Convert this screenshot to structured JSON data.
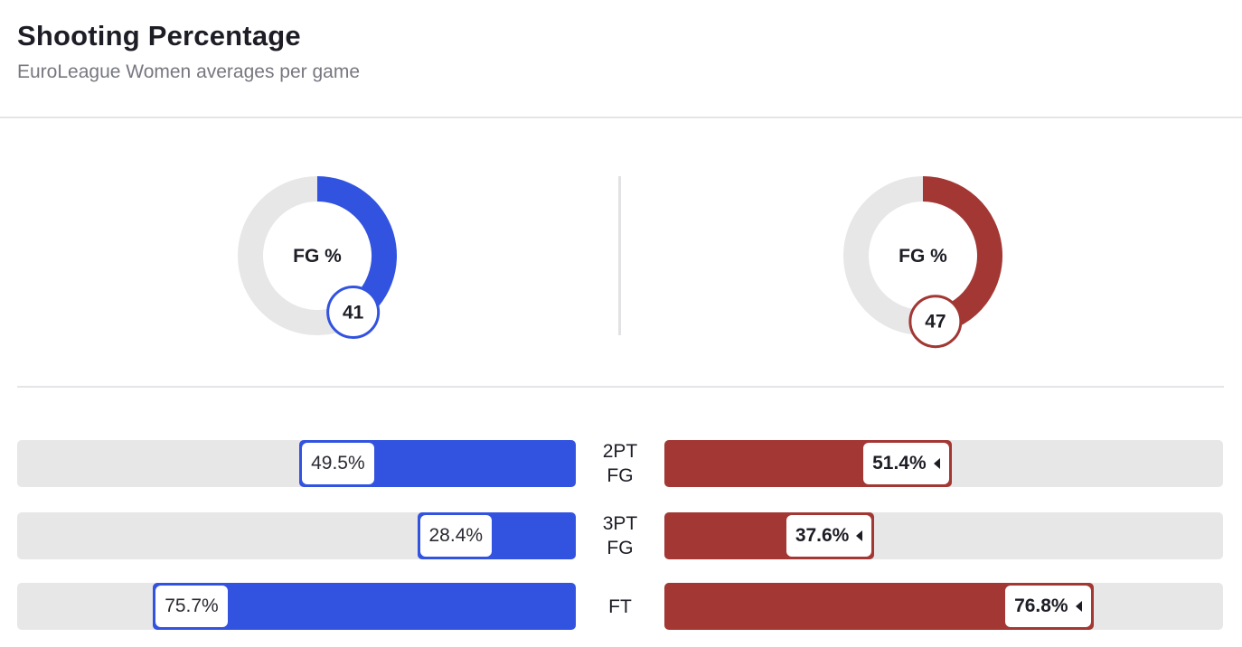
{
  "header": {
    "title": "Shooting Percentage",
    "subtitle": "EuroLeague Women averages per game"
  },
  "colors": {
    "left_team": "#3253df",
    "right_team": "#a23733",
    "track": "#e7e7e8"
  },
  "chart_data": [
    {
      "type": "pie",
      "label": "FG %",
      "team": "left",
      "value": 41,
      "max": 100
    },
    {
      "type": "pie",
      "label": "FG %",
      "team": "right",
      "value": 47,
      "max": 100
    },
    {
      "type": "bar",
      "orientation": "diverging-horizontal",
      "categories": [
        "2PT FG",
        "3PT FG",
        "FT"
      ],
      "category_lines": [
        [
          "2PT",
          "FG"
        ],
        [
          "3PT",
          "FG"
        ],
        [
          "FT"
        ]
      ],
      "series": [
        {
          "values": [
            49.5,
            28.4,
            75.7
          ],
          "labels": [
            "49.5%",
            "28.4%",
            "75.7%"
          ],
          "side": "left"
        },
        {
          "values": [
            51.4,
            37.6,
            76.8
          ],
          "labels": [
            "51.4%",
            "37.6%",
            "76.8%"
          ],
          "side": "right",
          "highlighted": [
            true,
            true,
            true
          ]
        }
      ],
      "xlim": [
        0,
        100
      ]
    }
  ]
}
